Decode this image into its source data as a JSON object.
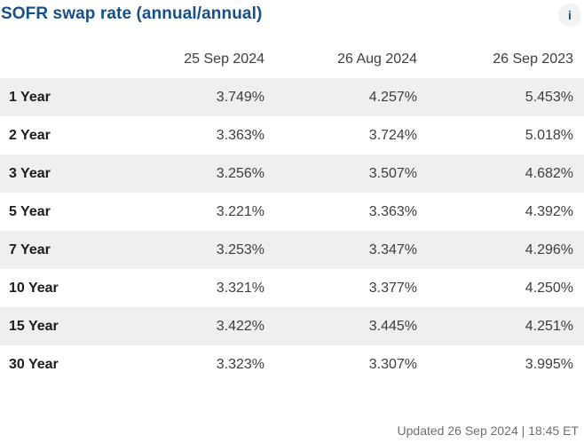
{
  "widget": {
    "title": "SOFR swap rate (annual/annual)",
    "info_icon": "i",
    "accent_color": "#15508c",
    "stripe_color": "#efefef"
  },
  "table": {
    "columns": [
      "25 Sep 2024",
      "26 Aug 2024",
      "26 Sep 2023"
    ],
    "rows": [
      {
        "label": "1 Year",
        "values": [
          "3.749%",
          "4.257%",
          "5.453%"
        ]
      },
      {
        "label": "2 Year",
        "values": [
          "3.363%",
          "3.724%",
          "5.018%"
        ]
      },
      {
        "label": "3 Year",
        "values": [
          "3.256%",
          "3.507%",
          "4.682%"
        ]
      },
      {
        "label": "5 Year",
        "values": [
          "3.221%",
          "3.363%",
          "4.392%"
        ]
      },
      {
        "label": "7 Year",
        "values": [
          "3.253%",
          "3.347%",
          "4.296%"
        ]
      },
      {
        "label": "10 Year",
        "values": [
          "3.321%",
          "3.377%",
          "4.250%"
        ]
      },
      {
        "label": "15 Year",
        "values": [
          "3.422%",
          "3.445%",
          "4.251%"
        ]
      },
      {
        "label": "30 Year",
        "values": [
          "3.323%",
          "3.307%",
          "3.995%"
        ]
      }
    ]
  },
  "footer": {
    "updated_text": "Updated 26 Sep 2024 | 18:45 ET"
  }
}
